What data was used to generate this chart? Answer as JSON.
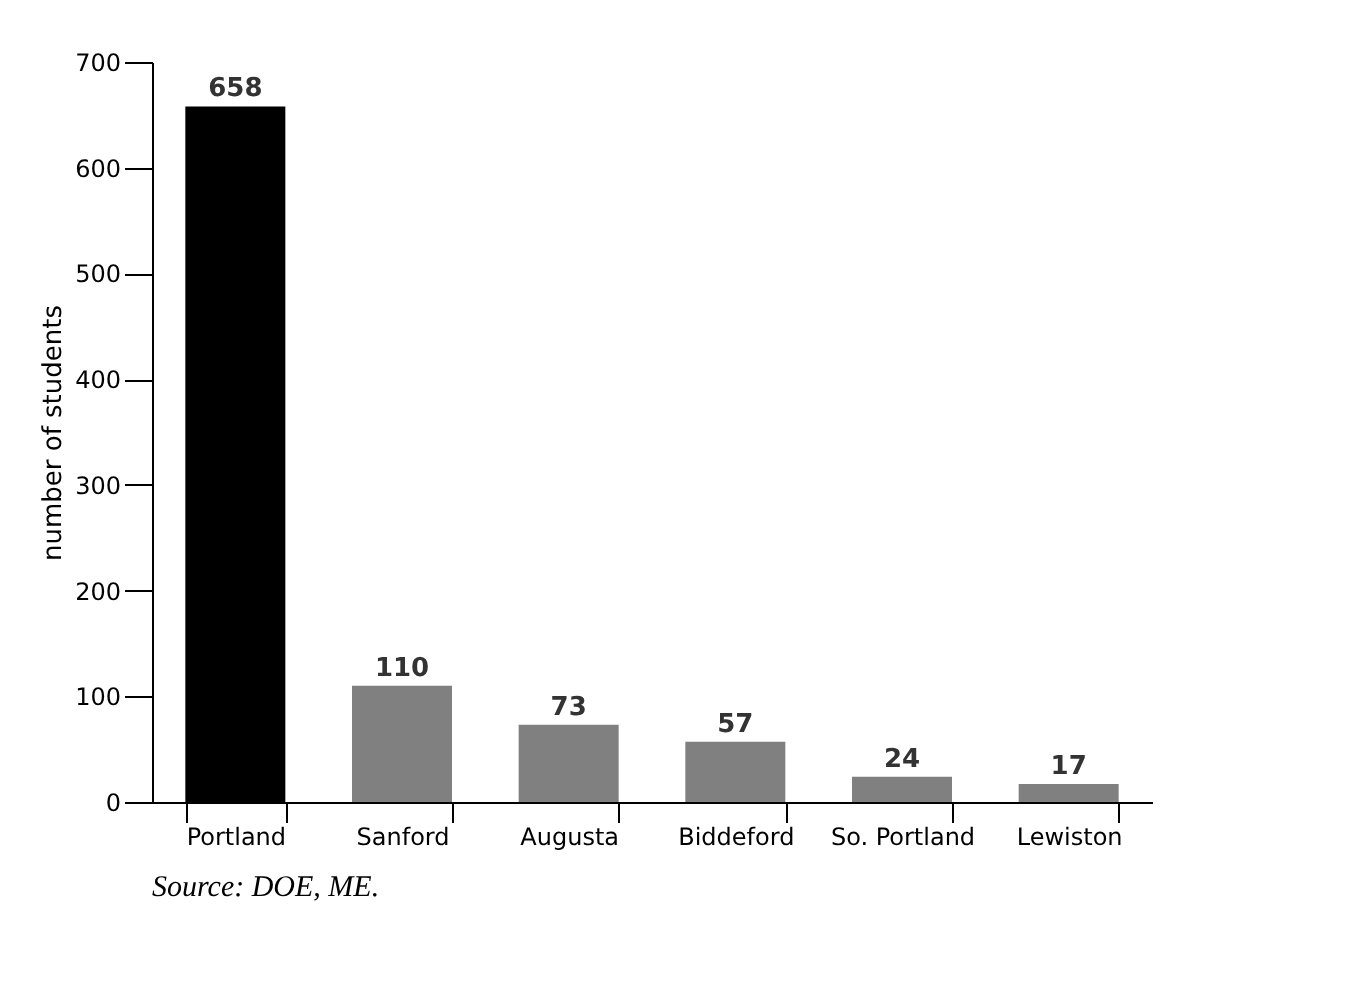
{
  "chart_data": {
    "type": "bar",
    "ylabel": "number of students",
    "categories": [
      "Portland",
      "Sanford",
      "Augusta",
      "Biddeford",
      "So. Portland",
      "Lewiston"
    ],
    "values": [
      658,
      110,
      73,
      57,
      24,
      17
    ],
    "colors": [
      "#000000",
      "#808080",
      "#808080",
      "#808080",
      "#808080",
      "#808080"
    ],
    "ylim": [
      0,
      700
    ],
    "yticks": [
      0,
      100,
      200,
      300,
      400,
      500,
      600,
      700
    ],
    "grid": false,
    "data_labels": true,
    "annotations": [
      "Source: DOE, ME."
    ]
  }
}
